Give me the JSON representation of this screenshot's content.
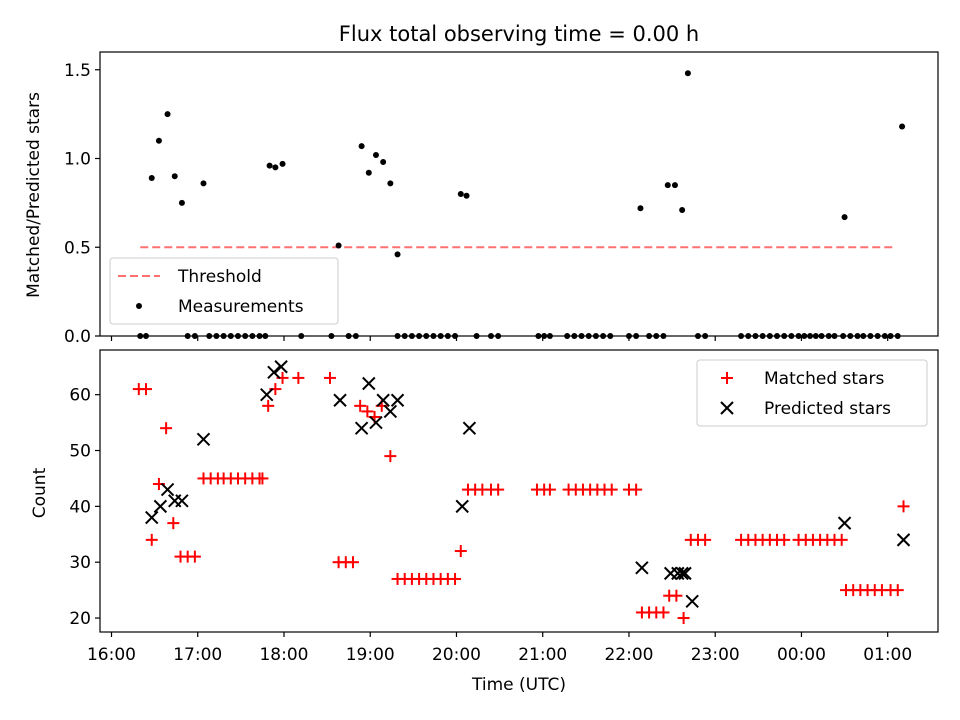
{
  "chart_data": [
    {
      "type": "scatter",
      "title": "Flux total observing time = 0.00 h",
      "xlabel": "",
      "ylabel": "Matched/Predicted stars",
      "xlim": [
        "15:52",
        "01:35"
      ],
      "ylim": [
        0.0,
        1.6
      ],
      "yticks": [
        0.0,
        0.5,
        1.0,
        1.5
      ],
      "ytick_labels": [
        "0.0",
        "0.5",
        "1.0",
        "1.5"
      ],
      "legend_loc": "lower left",
      "threshold": {
        "name": "Threshold",
        "y": 0.5,
        "x_start": "16:20",
        "x_end": "01:05",
        "color": "#ff7070",
        "style": "dashed"
      },
      "series": [
        {
          "name": "Measurements",
          "color": "#000000",
          "marker": "dot",
          "points": [
            [
              "16:20",
              0
            ],
            [
              "16:24",
              0
            ],
            [
              "16:28",
              0.89
            ],
            [
              "16:33",
              1.1
            ],
            [
              "16:39",
              1.25
            ],
            [
              "16:44",
              0.9
            ],
            [
              "16:49",
              0.75
            ],
            [
              "16:53",
              0
            ],
            [
              "16:58",
              0
            ],
            [
              "17:04",
              0.86
            ],
            [
              "17:08",
              0
            ],
            [
              "17:13",
              0
            ],
            [
              "17:18",
              0
            ],
            [
              "17:23",
              0
            ],
            [
              "17:28",
              0
            ],
            [
              "17:33",
              0
            ],
            [
              "17:38",
              0
            ],
            [
              "17:43",
              0
            ],
            [
              "17:47",
              0
            ],
            [
              "17:50",
              0.96
            ],
            [
              "17:54",
              0.95
            ],
            [
              "17:59",
              0.97
            ],
            [
              "18:12",
              0
            ],
            [
              "18:33",
              0
            ],
            [
              "18:38",
              0.51
            ],
            [
              "18:45",
              0
            ],
            [
              "18:50",
              0
            ],
            [
              "18:54",
              1.07
            ],
            [
              "18:59",
              0.92
            ],
            [
              "19:04",
              1.02
            ],
            [
              "19:09",
              0.98
            ],
            [
              "19:14",
              0.86
            ],
            [
              "19:19",
              0
            ],
            [
              "19:19",
              0.46
            ],
            [
              "19:24",
              0
            ],
            [
              "19:29",
              0
            ],
            [
              "19:34",
              0
            ],
            [
              "19:39",
              0
            ],
            [
              "19:44",
              0
            ],
            [
              "19:49",
              0
            ],
            [
              "19:54",
              0
            ],
            [
              "19:59",
              0
            ],
            [
              "20:03",
              0.8
            ],
            [
              "20:07",
              0.79
            ],
            [
              "20:14",
              0
            ],
            [
              "20:24",
              0
            ],
            [
              "20:29",
              0
            ],
            [
              "20:57",
              0
            ],
            [
              "21:01",
              0
            ],
            [
              "21:05",
              0
            ],
            [
              "21:17",
              0
            ],
            [
              "21:22",
              0
            ],
            [
              "21:27",
              0
            ],
            [
              "21:32",
              0
            ],
            [
              "21:37",
              0
            ],
            [
              "21:42",
              0
            ],
            [
              "21:47",
              0
            ],
            [
              "22:00",
              0
            ],
            [
              "22:05",
              0
            ],
            [
              "22:08",
              0.72
            ],
            [
              "22:14",
              0
            ],
            [
              "22:19",
              0
            ],
            [
              "22:24",
              0
            ],
            [
              "22:27",
              0.85
            ],
            [
              "22:32",
              0.85
            ],
            [
              "22:37",
              0.71
            ],
            [
              "22:41",
              1.48
            ],
            [
              "22:48",
              0
            ],
            [
              "22:53",
              0
            ],
            [
              "23:18",
              0
            ],
            [
              "23:23",
              0
            ],
            [
              "23:28",
              0
            ],
            [
              "23:33",
              0
            ],
            [
              "23:38",
              0
            ],
            [
              "23:43",
              0
            ],
            [
              "23:48",
              0
            ],
            [
              "23:53",
              0
            ],
            [
              "23:58",
              0
            ],
            [
              "00:02",
              0
            ],
            [
              "00:06",
              0
            ],
            [
              "00:10",
              0
            ],
            [
              "00:14",
              0
            ],
            [
              "00:19",
              0
            ],
            [
              "00:23",
              0
            ],
            [
              "00:29",
              0
            ],
            [
              "00:34",
              0
            ],
            [
              "00:39",
              0
            ],
            [
              "00:43",
              0
            ],
            [
              "00:48",
              0
            ],
            [
              "00:53",
              0
            ],
            [
              "00:58",
              0
            ],
            [
              "01:02",
              0
            ],
            [
              "01:07",
              0
            ],
            [
              "01:10",
              1.18
            ],
            [
              "00:30",
              0.67
            ]
          ]
        }
      ]
    },
    {
      "type": "scatter",
      "title": "",
      "xlabel": "Time (UTC)",
      "ylabel": "Count",
      "xlim": [
        "15:52",
        "01:35"
      ],
      "ylim": [
        17.5,
        68
      ],
      "yticks": [
        20,
        30,
        40,
        50,
        60
      ],
      "ytick_labels": [
        "20",
        "30",
        "40",
        "50",
        "60"
      ],
      "xticks": [
        "16:00",
        "17:00",
        "18:00",
        "19:00",
        "20:00",
        "21:00",
        "22:00",
        "23:00",
        "00:00",
        "01:00"
      ],
      "xtick_labels": [
        "16:00",
        "17:00",
        "18:00",
        "19:00",
        "20:00",
        "21:00",
        "22:00",
        "23:00",
        "00:00",
        "01:00"
      ],
      "legend_loc": "upper right",
      "series": [
        {
          "name": "Matched stars",
          "color": "#ff0000",
          "marker": "plus",
          "points": [
            [
              "16:19",
              61
            ],
            [
              "16:24",
              61
            ],
            [
              "16:28",
              34
            ],
            [
              "16:33",
              44
            ],
            [
              "16:38",
              54
            ],
            [
              "16:43",
              37
            ],
            [
              "16:48",
              31
            ],
            [
              "16:53",
              31
            ],
            [
              "16:58",
              31
            ],
            [
              "17:04",
              45
            ],
            [
              "17:09",
              45
            ],
            [
              "17:14",
              45
            ],
            [
              "17:18",
              45
            ],
            [
              "17:23",
              45
            ],
            [
              "17:28",
              45
            ],
            [
              "17:33",
              45
            ],
            [
              "17:38",
              45
            ],
            [
              "17:43",
              45
            ],
            [
              "17:45",
              45
            ],
            [
              "17:49",
              58
            ],
            [
              "17:54",
              61
            ],
            [
              "17:59",
              63
            ],
            [
              "18:10",
              63
            ],
            [
              "18:32",
              63
            ],
            [
              "18:38",
              30
            ],
            [
              "18:43",
              30
            ],
            [
              "18:48",
              30
            ],
            [
              "18:53",
              58
            ],
            [
              "18:58",
              57
            ],
            [
              "19:03",
              56
            ],
            [
              "19:08",
              58
            ],
            [
              "19:14",
              49
            ],
            [
              "19:19",
              27
            ],
            [
              "19:24",
              27
            ],
            [
              "19:29",
              27
            ],
            [
              "19:34",
              27
            ],
            [
              "19:39",
              27
            ],
            [
              "19:44",
              27
            ],
            [
              "19:49",
              27
            ],
            [
              "19:54",
              27
            ],
            [
              "19:59",
              27
            ],
            [
              "20:03",
              32
            ],
            [
              "20:08",
              43
            ],
            [
              "20:13",
              43
            ],
            [
              "20:18",
              43
            ],
            [
              "20:24",
              43
            ],
            [
              "20:29",
              43
            ],
            [
              "20:56",
              43
            ],
            [
              "21:01",
              43
            ],
            [
              "21:05",
              43
            ],
            [
              "21:18",
              43
            ],
            [
              "21:23",
              43
            ],
            [
              "21:28",
              43
            ],
            [
              "21:33",
              43
            ],
            [
              "21:38",
              43
            ],
            [
              "21:43",
              43
            ],
            [
              "21:48",
              43
            ],
            [
              "22:00",
              43
            ],
            [
              "22:05",
              43
            ],
            [
              "22:09",
              21
            ],
            [
              "22:14",
              21
            ],
            [
              "22:19",
              21
            ],
            [
              "22:24",
              21
            ],
            [
              "22:28",
              24
            ],
            [
              "22:33",
              24
            ],
            [
              "22:38",
              20
            ],
            [
              "22:43",
              34
            ],
            [
              "22:48",
              34
            ],
            [
              "22:53",
              34
            ],
            [
              "23:18",
              34
            ],
            [
              "23:23",
              34
            ],
            [
              "23:28",
              34
            ],
            [
              "23:33",
              34
            ],
            [
              "23:38",
              34
            ],
            [
              "23:43",
              34
            ],
            [
              "23:48",
              34
            ],
            [
              "23:58",
              34
            ],
            [
              "00:03",
              34
            ],
            [
              "00:08",
              34
            ],
            [
              "00:13",
              34
            ],
            [
              "00:18",
              34
            ],
            [
              "00:23",
              34
            ],
            [
              "00:28",
              34
            ],
            [
              "00:31",
              25
            ],
            [
              "00:36",
              25
            ],
            [
              "00:41",
              25
            ],
            [
              "00:46",
              25
            ],
            [
              "00:51",
              25
            ],
            [
              "00:56",
              25
            ],
            [
              "01:02",
              25
            ],
            [
              "01:07",
              25
            ],
            [
              "01:11",
              40
            ]
          ]
        },
        {
          "name": "Predicted stars",
          "color": "#000000",
          "marker": "x",
          "points": [
            [
              "16:28",
              38
            ],
            [
              "16:34",
              40
            ],
            [
              "16:39",
              43
            ],
            [
              "16:44",
              41
            ],
            [
              "16:49",
              41
            ],
            [
              "17:04",
              52
            ],
            [
              "17:48",
              60
            ],
            [
              "17:53",
              64
            ],
            [
              "17:58",
              65
            ],
            [
              "18:39",
              59
            ],
            [
              "18:54",
              54
            ],
            [
              "18:59",
              62
            ],
            [
              "19:04",
              55
            ],
            [
              "19:09",
              59
            ],
            [
              "19:14",
              57
            ],
            [
              "19:19",
              59
            ],
            [
              "20:04",
              40
            ],
            [
              "20:09",
              54
            ],
            [
              "22:09",
              29
            ],
            [
              "22:29",
              28
            ],
            [
              "22:34",
              28
            ],
            [
              "22:37",
              28
            ],
            [
              "22:39",
              28
            ],
            [
              "22:44",
              23
            ],
            [
              "00:30",
              37
            ],
            [
              "01:11",
              34
            ]
          ]
        }
      ]
    }
  ]
}
